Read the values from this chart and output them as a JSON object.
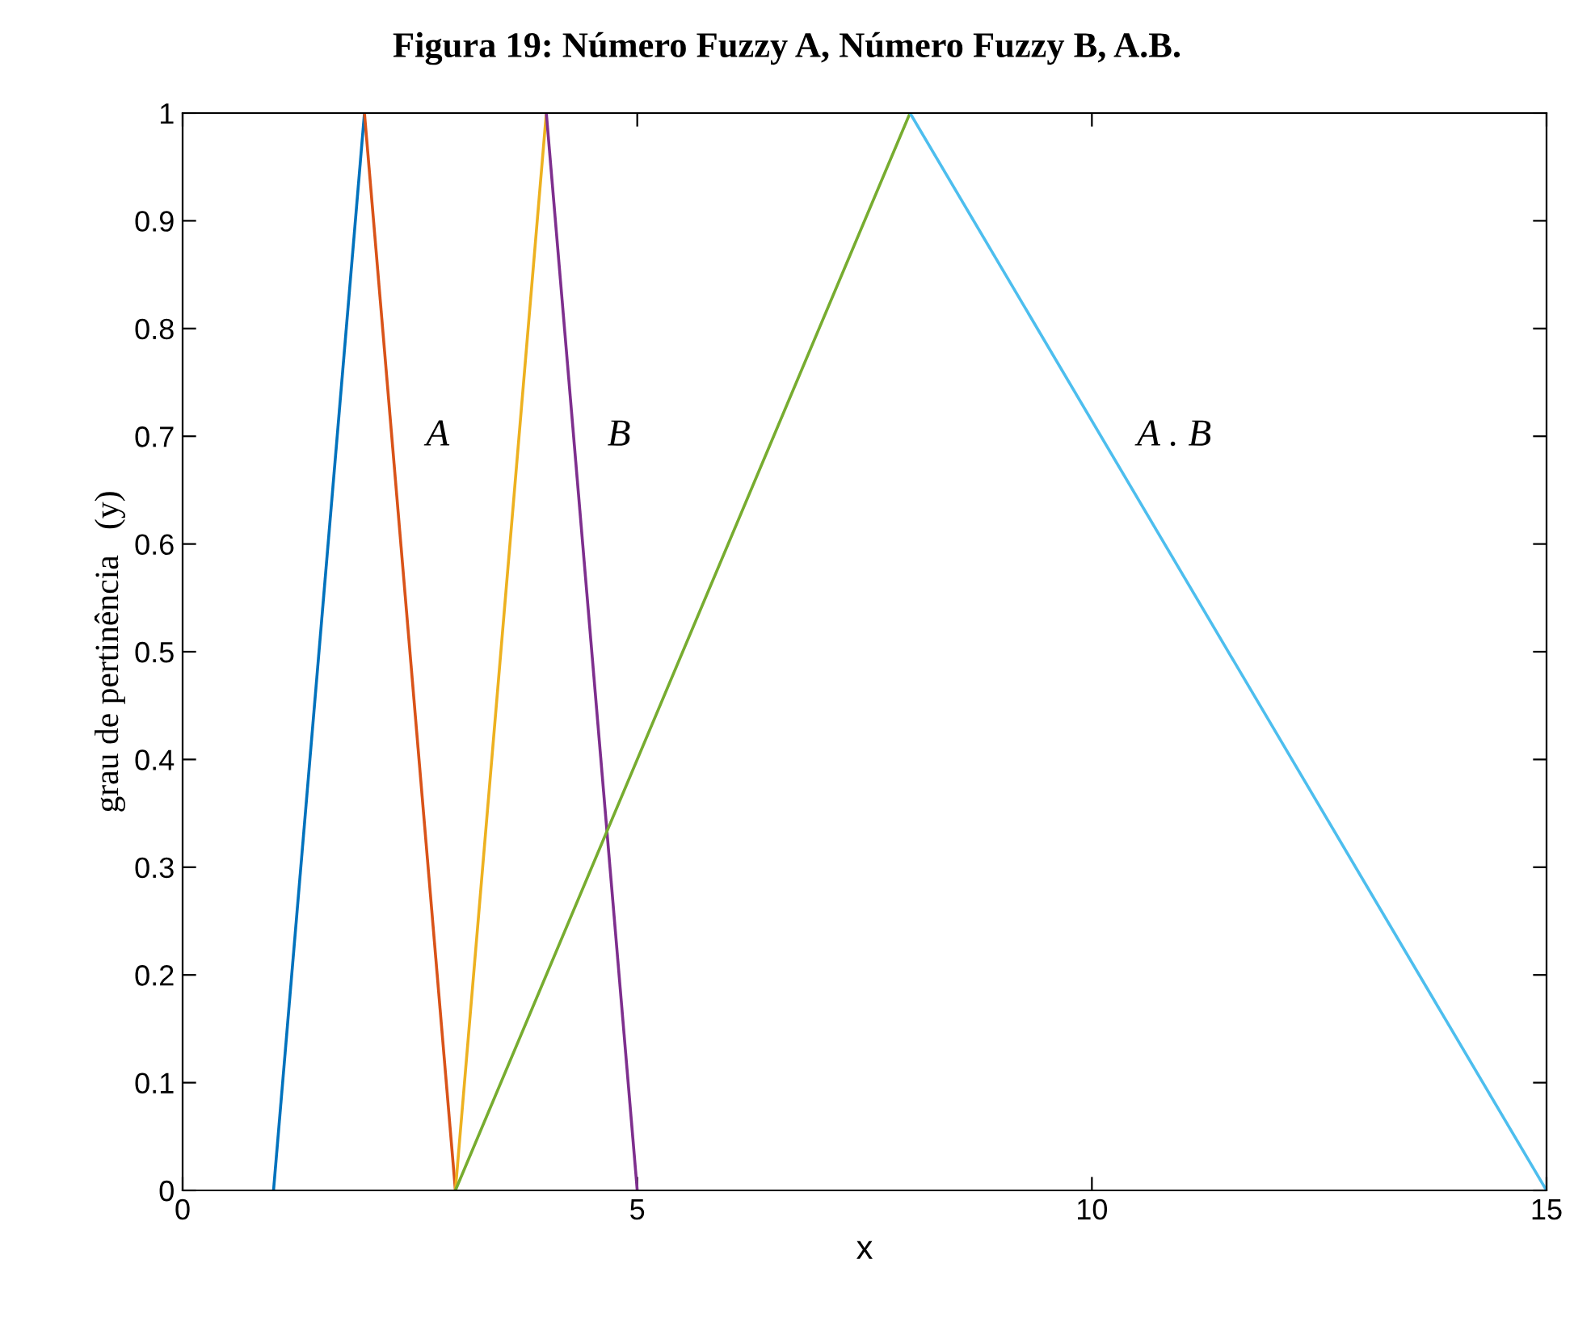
{
  "chart_data": {
    "type": "line",
    "title": "Figura 19: Número Fuzzy A, Número Fuzzy B, A.B.",
    "xlabel": "x",
    "ylabel": "grau de pertinência   (y)",
    "series": [
      {
        "color": "#0072bd",
        "x": [
          1,
          2
        ],
        "values": [
          0,
          1
        ]
      },
      {
        "color": "#d95319",
        "x": [
          2,
          3
        ],
        "values": [
          1,
          0
        ]
      },
      {
        "color": "#edb120",
        "x": [
          3,
          4
        ],
        "values": [
          0,
          1
        ]
      },
      {
        "color": "#7e2f8e",
        "x": [
          4,
          5
        ],
        "values": [
          1,
          0
        ]
      },
      {
        "color": "#77ac30",
        "x": [
          3,
          8
        ],
        "values": [
          0,
          1
        ]
      },
      {
        "color": "#4dbeee",
        "x": [
          8,
          15
        ],
        "values": [
          1,
          0
        ]
      }
    ],
    "annotations": [
      "A",
      "B",
      "A . B"
    ],
    "xlim": [
      0,
      15
    ],
    "ylim": [
      0,
      1
    ],
    "xticks": [
      0,
      5,
      10,
      15
    ],
    "yticks": [
      0,
      0.1,
      0.2,
      0.3,
      0.4,
      0.5,
      0.6,
      0.7,
      0.8,
      0.9,
      1
    ],
    "grid": false,
    "legend": false,
    "marker": "none",
    "line_style": "solid"
  }
}
